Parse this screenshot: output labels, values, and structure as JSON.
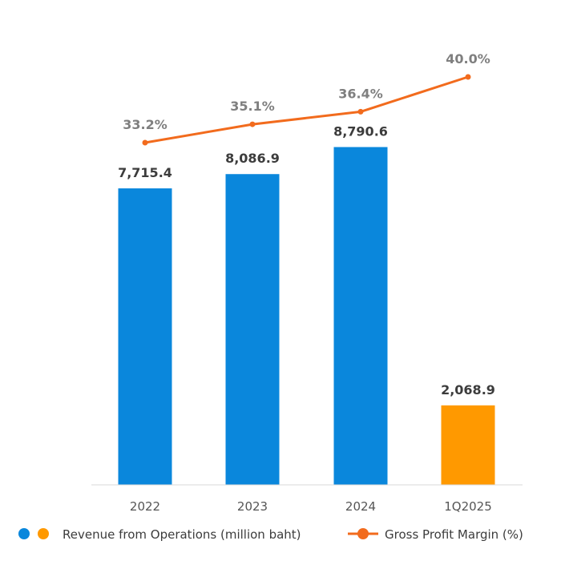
{
  "chart_data": {
    "type": "bar",
    "categories": [
      "2022",
      "2023",
      "2024",
      "1Q2025"
    ],
    "series": [
      {
        "name": "Revenue from Operations (million baht)",
        "type": "bar",
        "values": [
          7715.4,
          8086.9,
          8790.6,
          2068.9
        ],
        "value_labels": [
          "7,715.4",
          "8,086.9",
          "8,790.6",
          "2,068.9"
        ],
        "colors": [
          "#0a87dc",
          "#0a87dc",
          "#0a87dc",
          "#ff9900"
        ]
      },
      {
        "name": "Gross Profit Margin (%)",
        "type": "line",
        "values": [
          33.2,
          35.1,
          36.4,
          40.0
        ],
        "value_labels": [
          "33.2%",
          "35.1%",
          "36.4%",
          "40.0%"
        ],
        "color": "#f26b1d"
      }
    ],
    "bar_ylim": [
      0,
      10000
    ],
    "line_ylim": [
      0,
      45
    ],
    "legend_position": "bottom",
    "grid": false
  },
  "legend": {
    "bar_label": "Revenue from Operations (million baht)",
    "line_label": "Gross Profit Margin (%)",
    "bar_colors": [
      "#0a87dc",
      "#ff9900"
    ],
    "line_color": "#f26b1d"
  }
}
